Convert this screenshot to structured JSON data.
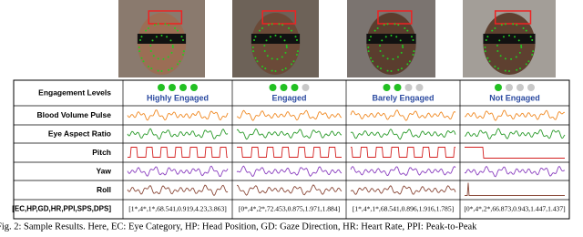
{
  "table": {
    "row_labels": [
      "Engagement Levels",
      "Blood Volume Pulse",
      "Eye Aspect Ratio",
      "Pitch",
      "Yaw",
      "Roll",
      "[EC,HP,GD,HR,PPI,SPS,DPS]"
    ],
    "columns": [
      {
        "level": "Highly Engaged",
        "dots": 4,
        "vector": "[1*,4*,1*,68.541,0.919,4.23,3.863]"
      },
      {
        "level": "Engaged",
        "dots": 3,
        "vector": "[0*,4*,2*,72.453,0.875,1.971,1.884]"
      },
      {
        "level": "Barely Engaged",
        "dots": 2,
        "vector": "[1*,4*,1*,68.541,0.896,1.916,1.785]"
      },
      {
        "level": "Not Engaged",
        "dots": 1,
        "vector": "[0*,4*,2*,66.873,0.943,1.447,1.437]"
      }
    ]
  },
  "caption": "Fig. 2: Sample Results. Here, EC: Eye Category, HP: Head Position, GD: Gaze Direction, HR: Heart Rate, PPI: Peak-to-Peak"
}
